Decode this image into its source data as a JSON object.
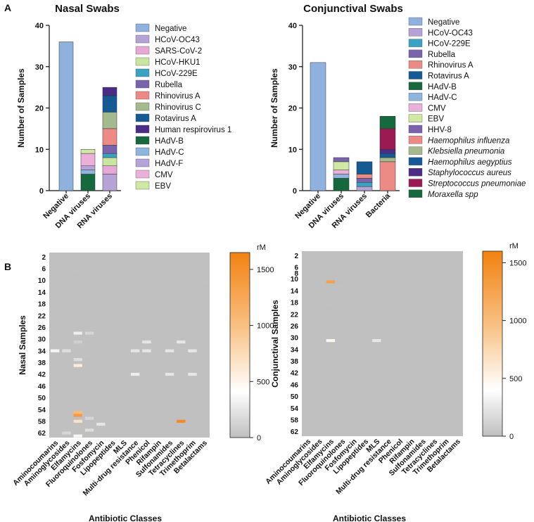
{
  "panel_labels": [
    "A",
    "B"
  ],
  "chart_data": [
    {
      "type": "bar",
      "stacked": true,
      "title": "Nasal Swabs",
      "xlabel": "",
      "ylabel": "Number of Samples",
      "ylim": [
        0,
        40
      ],
      "yticks": [
        0,
        10,
        20,
        30,
        40
      ],
      "categories": [
        "Negative",
        "DNA viruses",
        "RNA viruses"
      ],
      "series": [
        {
          "name": "Negative",
          "italic": false,
          "color": "#8eb1dd",
          "values": [
            36,
            0,
            0
          ]
        },
        {
          "name": "HCoV-OC43",
          "italic": false,
          "color": "#b5a3d6",
          "values": [
            0,
            0,
            4
          ]
        },
        {
          "name": "SARS-CoV-2",
          "italic": false,
          "color": "#e7a8d5",
          "values": [
            0,
            0,
            2
          ]
        },
        {
          "name": "HCoV-HKU1",
          "italic": false,
          "color": "#c8e6a0",
          "values": [
            0,
            0,
            2
          ]
        },
        {
          "name": "HCoV-229E",
          "italic": false,
          "color": "#3aa3c4",
          "values": [
            0,
            0,
            1
          ]
        },
        {
          "name": "Rubella",
          "italic": false,
          "color": "#7a63ad",
          "values": [
            0,
            0,
            2
          ]
        },
        {
          "name": "Rhinovirus A",
          "italic": false,
          "color": "#ec8b86",
          "values": [
            0,
            0,
            4
          ]
        },
        {
          "name": "Rhinovirus C",
          "italic": false,
          "color": "#a4b98e",
          "values": [
            0,
            0,
            4
          ]
        },
        {
          "name": "Rotavirus A",
          "italic": false,
          "color": "#155a94",
          "values": [
            0,
            0,
            4
          ]
        },
        {
          "name": "Human respirovirus 1",
          "italic": false,
          "color": "#4b2d88",
          "values": [
            0,
            0,
            2
          ]
        },
        {
          "name": "HAdV-B",
          "italic": false,
          "color": "#16683d",
          "values": [
            0,
            4,
            0
          ]
        },
        {
          "name": "HAdV-C",
          "italic": false,
          "color": "#8eb5dd",
          "values": [
            0,
            1,
            0
          ]
        },
        {
          "name": "HAdV-F",
          "italic": false,
          "color": "#b3a3d6",
          "values": [
            0,
            1,
            0
          ]
        },
        {
          "name": "CMV",
          "italic": false,
          "color": "#eab0da",
          "values": [
            0,
            3,
            0
          ]
        },
        {
          "name": "EBV",
          "italic": false,
          "color": "#cfe8a3",
          "values": [
            0,
            1,
            0
          ]
        }
      ]
    },
    {
      "type": "bar",
      "stacked": true,
      "title": "Conjunctival Swabs",
      "xlabel": "",
      "ylabel": "Number of Samples",
      "ylim": [
        0,
        40
      ],
      "yticks": [
        0,
        10,
        20,
        30,
        40
      ],
      "categories": [
        "Negative",
        "DNA viruses",
        "RNA viruses",
        "Bacteria"
      ],
      "series": [
        {
          "name": "Negative",
          "italic": false,
          "color": "#8eb1dd",
          "values": [
            31,
            0,
            0,
            0
          ]
        },
        {
          "name": "HCoV-OC43",
          "italic": false,
          "color": "#b5a3d6",
          "values": [
            0,
            0,
            1,
            0
          ]
        },
        {
          "name": "HCoV-229E",
          "italic": false,
          "color": "#3aa3c4",
          "values": [
            0,
            0,
            1,
            0
          ]
        },
        {
          "name": "Rubella",
          "italic": false,
          "color": "#7a63ad",
          "values": [
            0,
            0,
            1,
            0
          ]
        },
        {
          "name": "Rhinovirus A",
          "italic": false,
          "color": "#ec8b86",
          "values": [
            0,
            0,
            1,
            0
          ]
        },
        {
          "name": "Rotavirus A",
          "italic": false,
          "color": "#155a94",
          "values": [
            0,
            0,
            3,
            0
          ]
        },
        {
          "name": "HAdV-B",
          "italic": false,
          "color": "#16683d",
          "values": [
            0,
            3,
            0,
            0
          ]
        },
        {
          "name": "HAdV-C",
          "italic": false,
          "color": "#8eb5dd",
          "values": [
            0,
            1,
            0,
            0
          ]
        },
        {
          "name": "CMV",
          "italic": false,
          "color": "#eab0da",
          "values": [
            0,
            1,
            0,
            0
          ]
        },
        {
          "name": "EBV",
          "italic": false,
          "color": "#cfe8a3",
          "values": [
            0,
            2,
            0,
            0
          ]
        },
        {
          "name": "HHV-8",
          "italic": false,
          "color": "#7a63ad",
          "values": [
            0,
            1,
            0,
            0
          ]
        },
        {
          "name": "Haemophilus influenza",
          "italic": true,
          "color": "#ec8b86",
          "values": [
            0,
            0,
            0,
            7
          ]
        },
        {
          "name": "Klebsiella pneumonia",
          "italic": true,
          "color": "#a4b98e",
          "values": [
            0,
            0,
            0,
            1
          ]
        },
        {
          "name": "Haemophilus aegyptius",
          "italic": true,
          "color": "#155a94",
          "values": [
            0,
            0,
            0,
            1
          ]
        },
        {
          "name": "Staphylococcus aureus",
          "italic": true,
          "color": "#4b2d88",
          "values": [
            0,
            0,
            0,
            1
          ]
        },
        {
          "name": "Streptococcus pneumoniae",
          "italic": true,
          "color": "#9b1a52",
          "values": [
            0,
            0,
            0,
            5
          ]
        },
        {
          "name": "Moraxella spp",
          "italic": true,
          "color": "#16683d",
          "values": [
            0,
            0,
            0,
            3
          ]
        }
      ]
    },
    {
      "type": "heatmap",
      "title": "",
      "xlabel": "Antibiotic Classes",
      "ylabel": "Nasal Samples",
      "x": [
        "Aminocoumarins",
        "Aminoglycosides",
        "Elfamycins",
        "Fluoroquinolones",
        "Fosfomycin",
        "Lipopeptides",
        "MLS",
        "Multi-drug resistance",
        "Phenicol",
        "Rifampin",
        "Sulfonamides",
        "Tetracyclines",
        "Trimethoprim",
        "Betalactams"
      ],
      "y": [
        "2",
        "6",
        "10",
        "14",
        "18",
        "22",
        "26",
        "30",
        "34",
        "38",
        "42",
        "46",
        "50",
        "54",
        "58",
        "62"
      ],
      "n_rows": 63,
      "background": "#c0c0c0",
      "colorbar": {
        "label": "rM",
        "min": 0,
        "max": 1650,
        "ticks": [
          0,
          500,
          1000,
          1500
        ]
      },
      "cells": [
        {
          "row": 33,
          "col": 0,
          "value": 350
        },
        {
          "row": 33,
          "col": 1,
          "value": 200
        },
        {
          "row": 61,
          "col": 1,
          "value": 150
        },
        {
          "row": 7,
          "col": 2,
          "value": 0
        },
        {
          "row": 14,
          "col": 2,
          "value": 0
        },
        {
          "row": 27,
          "col": 2,
          "value": 300
        },
        {
          "row": 30,
          "col": 2,
          "value": 100
        },
        {
          "row": 36,
          "col": 2,
          "value": 200
        },
        {
          "row": 38,
          "col": 2,
          "value": 600
        },
        {
          "row": 54,
          "col": 2,
          "value": 1100
        },
        {
          "row": 55,
          "col": 2,
          "value": 1400
        },
        {
          "row": 57,
          "col": 2,
          "value": 700
        },
        {
          "row": 60,
          "col": 2,
          "value": 0
        },
        {
          "row": 62,
          "col": 2,
          "value": 500
        },
        {
          "row": 27,
          "col": 3,
          "value": 150
        },
        {
          "row": 30,
          "col": 3,
          "value": 0
        },
        {
          "row": 36,
          "col": 3,
          "value": 0
        },
        {
          "row": 54,
          "col": 3,
          "value": 0
        },
        {
          "row": 56,
          "col": 3,
          "value": 150
        },
        {
          "row": 58,
          "col": 3,
          "value": 0
        },
        {
          "row": 60,
          "col": 3,
          "value": 200
        },
        {
          "row": 58,
          "col": 4,
          "value": 250
        },
        {
          "row": 33,
          "col": 6,
          "value": 0
        },
        {
          "row": 33,
          "col": 7,
          "value": 250
        },
        {
          "row": 41,
          "col": 7,
          "value": 300
        },
        {
          "row": 30,
          "col": 8,
          "value": 250
        },
        {
          "row": 33,
          "col": 8,
          "value": 250
        },
        {
          "row": 37,
          "col": 8,
          "value": 0
        },
        {
          "row": 33,
          "col": 10,
          "value": 250
        },
        {
          "row": 41,
          "col": 10,
          "value": 250
        },
        {
          "row": 30,
          "col": 11,
          "value": 250
        },
        {
          "row": 37,
          "col": 11,
          "value": 0
        },
        {
          "row": 57,
          "col": 11,
          "value": 1550
        },
        {
          "row": 33,
          "col": 12,
          "value": 250
        },
        {
          "row": 41,
          "col": 12,
          "value": 250
        },
        {
          "row": 11,
          "col": 13,
          "value": 0
        }
      ]
    },
    {
      "type": "heatmap",
      "title": "",
      "xlabel": "Antibiotic Classes",
      "ylabel": "Conjunctival Samples",
      "x": [
        "Aminocoumarins",
        "Aminoglycosides",
        "Elfamycins",
        "Fluoroquinolones",
        "Fosfomycin",
        "Lipopeptides",
        "MLS",
        "Multi-drug resistance",
        "Phenicol",
        "Rifampin",
        "Sulfonamides",
        "Tetracyclines",
        "Trimethoprim",
        "Betalactams"
      ],
      "y": [
        "2",
        "6",
        "8",
        "10",
        "14",
        "18",
        "22",
        "26",
        "30",
        "34",
        "38",
        "42",
        "46",
        "50",
        "54",
        "58",
        "62"
      ],
      "n_rows": 63,
      "background": "#c0c0c0",
      "colorbar": {
        "label": "rM",
        "min": 0,
        "max": 1600,
        "ticks": [
          0,
          500,
          1000,
          1500
        ]
      },
      "cells": [
        {
          "row": 10,
          "col": 2,
          "value": 1300
        },
        {
          "row": 10,
          "col": 3,
          "value": 0
        },
        {
          "row": 19,
          "col": 2,
          "value": 0
        },
        {
          "row": 30,
          "col": 2,
          "value": 500
        },
        {
          "row": 30,
          "col": 6,
          "value": 250
        }
      ]
    }
  ]
}
